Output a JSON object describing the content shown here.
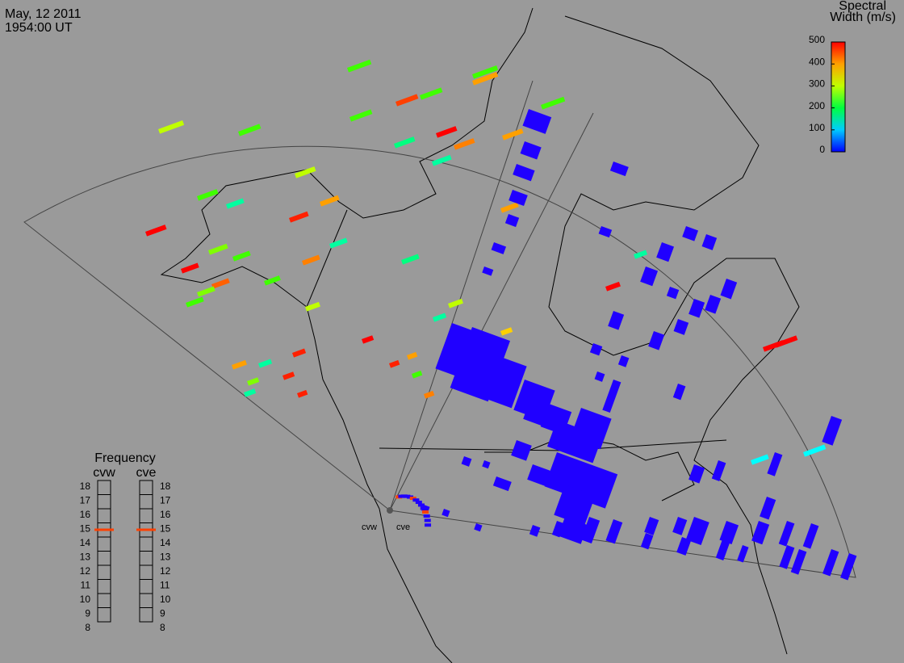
{
  "header": {
    "date": "May, 12 2011",
    "time": "1954:00 UT"
  },
  "colorbar": {
    "title": [
      "Spectral",
      "Width (m/s)"
    ],
    "range": [
      0,
      500
    ],
    "ticks": [
      0,
      100,
      200,
      300,
      400,
      500
    ]
  },
  "frequency": {
    "title": "Frequency",
    "radars": [
      "cvw",
      "cve"
    ],
    "range": [
      8,
      18
    ],
    "ticks": [
      8,
      9,
      10,
      11,
      12,
      13,
      14,
      15,
      16,
      17,
      18
    ],
    "values": [
      15,
      15
    ]
  },
  "sites": [
    "cvw",
    "cve"
  ]
}
